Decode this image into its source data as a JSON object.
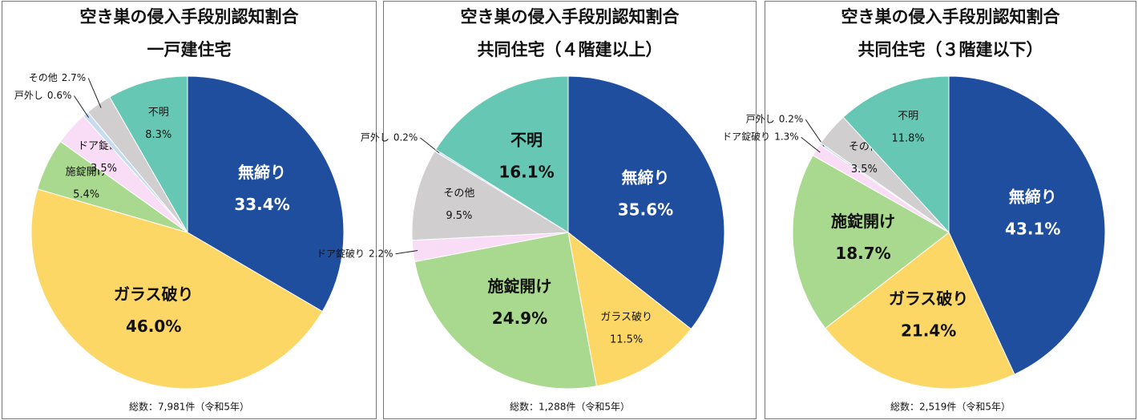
{
  "chart_data": [
    {
      "type": "pie",
      "title": "空き巣の侵入手段別認知割合",
      "subtitle": "一戸建住宅",
      "categories": [
        "無締り",
        "ガラス破り",
        "施錠開け",
        "ドア錠破り",
        "戸外し",
        "その他",
        "不明"
      ],
      "values": [
        33.4,
        46.0,
        5.4,
        3.5,
        0.6,
        2.7,
        8.3
      ],
      "value_labels": [
        "33.4%",
        "46.0%",
        "5.4%",
        "3.5%",
        "0.6%",
        "2.7%",
        "8.3%"
      ],
      "colors": [
        "#1f4e9f",
        "#fdd766",
        "#a9d98e",
        "#f9dcf6",
        "#c6dcf1",
        "#d0cece",
        "#66c8b4"
      ],
      "note": "総数：7,981件（令和5年）"
    },
    {
      "type": "pie",
      "title": "空き巣の侵入手段別認知割合",
      "subtitle": "共同住宅（４階建以上）",
      "categories": [
        "無締り",
        "ガラス破り",
        "施錠開け",
        "ドア錠破り",
        "その他",
        "戸外し",
        "不明"
      ],
      "values": [
        35.6,
        11.5,
        24.9,
        2.2,
        9.5,
        0.2,
        16.1
      ],
      "value_labels": [
        "35.6%",
        "11.5%",
        "24.9%",
        "2.2%",
        "9.5%",
        "0.2%",
        "16.1%"
      ],
      "colors": [
        "#1f4e9f",
        "#fdd766",
        "#a9d98e",
        "#f9dcf6",
        "#d0cece",
        "#c6dcf1",
        "#66c8b4"
      ],
      "note": "総数：1,288件（令和5年）"
    },
    {
      "type": "pie",
      "title": "空き巣の侵入手段別認知割合",
      "subtitle": "共同住宅（３階建以下）",
      "categories": [
        "無締り",
        "ガラス破り",
        "施錠開け",
        "ドア錠破り",
        "戸外し",
        "その他",
        "不明"
      ],
      "values": [
        43.1,
        21.4,
        18.7,
        1.3,
        0.2,
        3.5,
        11.8
      ],
      "value_labels": [
        "43.1%",
        "21.4%",
        "18.7%",
        "1.3%",
        "0.2%",
        "3.5%",
        "11.8%"
      ],
      "colors": [
        "#1f4e9f",
        "#fdd766",
        "#a9d98e",
        "#f9dcf6",
        "#c6dcf1",
        "#d0cece",
        "#66c8b4"
      ],
      "note": "総数：2,519件（令和5年）"
    }
  ]
}
